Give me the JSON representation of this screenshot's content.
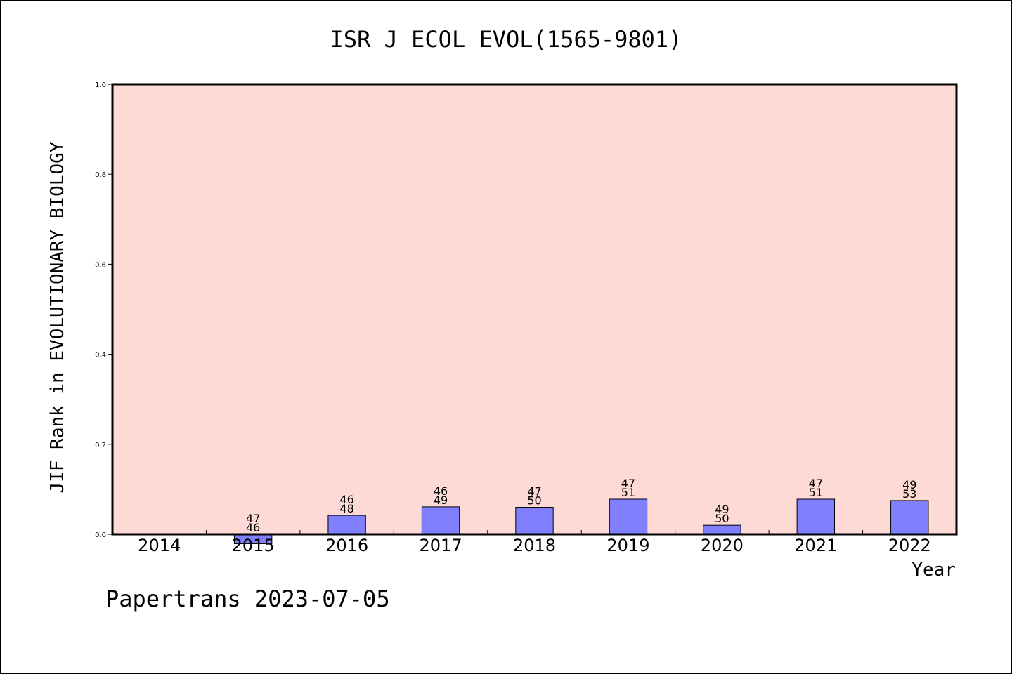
{
  "chart_data": {
    "type": "bar",
    "title": "ISR J ECOL EVOL(1565-9801)",
    "xlabel": "Year",
    "ylabel": "JIF Rank in EVOLUTIONARY BIOLOGY",
    "ylim": [
      0.0,
      1.0
    ],
    "yticks": [
      "0.0",
      "0.2",
      "0.4",
      "0.6",
      "0.8",
      "1.0"
    ],
    "categories": [
      "2014",
      "2015",
      "2016",
      "2017",
      "2018",
      "2019",
      "2020",
      "2021",
      "2022"
    ],
    "values": [
      null,
      -0.021,
      0.042,
      0.061,
      0.06,
      0.078,
      0.02,
      0.078,
      0.075
    ],
    "rank_labels": [
      null,
      [
        "47",
        "46"
      ],
      [
        "46",
        "48"
      ],
      [
        "46",
        "49"
      ],
      [
        "47",
        "50"
      ],
      [
        "47",
        "51"
      ],
      [
        "49",
        "50"
      ],
      [
        "47",
        "51"
      ],
      [
        "49",
        "53"
      ]
    ],
    "grid": false,
    "colors": {
      "plot_background": "#fddad6",
      "bar_fill": "#8080ff",
      "bar_edge": "#000000",
      "frame": "#000000"
    }
  },
  "footer": {
    "text": "Papertrans 2023-07-05"
  }
}
